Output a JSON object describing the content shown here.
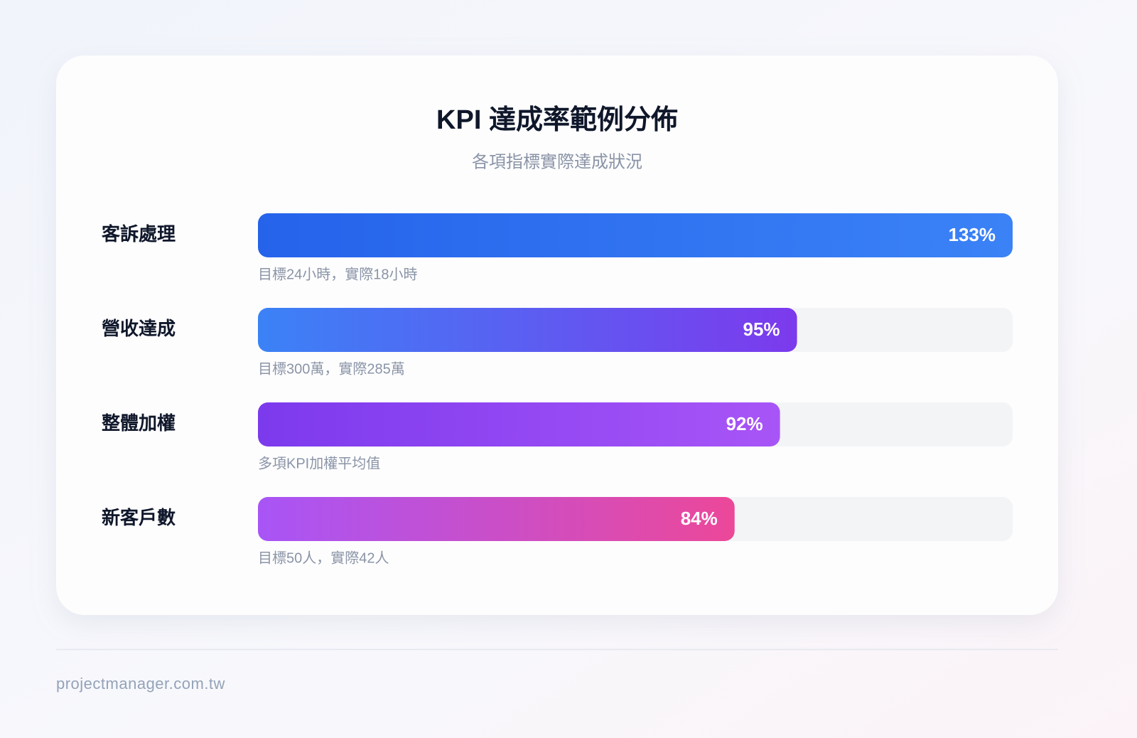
{
  "chart_data": {
    "type": "hbar",
    "title": "KPI 達成率範例分佈",
    "subtitle": "各項指標實際達成狀況",
    "categories": [
      "客訴處理",
      "營收達成",
      "整體加權",
      "新客戶數"
    ],
    "values": [
      133,
      95,
      92,
      84
    ],
    "value_labels": [
      "133%",
      "95%",
      "92%",
      "84%"
    ],
    "notes": [
      "目標24小時，實際18小時",
      "目標300萬，實際285萬",
      "多項KPI加權平均值",
      "目標50人，實際42人"
    ],
    "colors": [
      [
        "#2563eb",
        "#3b82f6"
      ],
      [
        "#3b82f6",
        "#7c3aed"
      ],
      [
        "#7c3aed",
        "#a855f7"
      ],
      [
        "#a855f7",
        "#ec4899"
      ]
    ],
    "xlim": [
      0,
      133
    ]
  },
  "footer": "projectmanager.com.tw"
}
